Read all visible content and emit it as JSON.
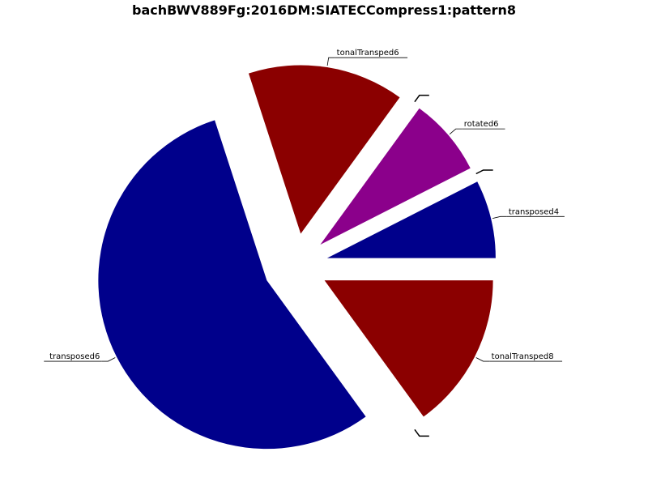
{
  "chart_data": {
    "type": "pie",
    "title": "bachBWV889Fg:2016DM:SIATECCompress1:pattern8",
    "start_angle_deg": 0,
    "direction": "counterclockwise",
    "exploded": true,
    "slices": [
      {
        "label": "transposed4",
        "value": 7.5,
        "color": "#00008b"
      },
      {
        "label": "",
        "value": 0,
        "color": "#00008b"
      },
      {
        "label": "rotated6",
        "value": 7.5,
        "color": "#8b008b"
      },
      {
        "label": "",
        "value": 0,
        "color": "#8b008b"
      },
      {
        "label": "tonalTransped6",
        "value": 15,
        "color": "#8b0000"
      },
      {
        "label": "transposed6",
        "value": 55,
        "color": "#00008b"
      },
      {
        "label": "",
        "value": 0,
        "color": "#00008b"
      },
      {
        "label": "tonalTransped8",
        "value": 15,
        "color": "#8b0000"
      }
    ]
  }
}
